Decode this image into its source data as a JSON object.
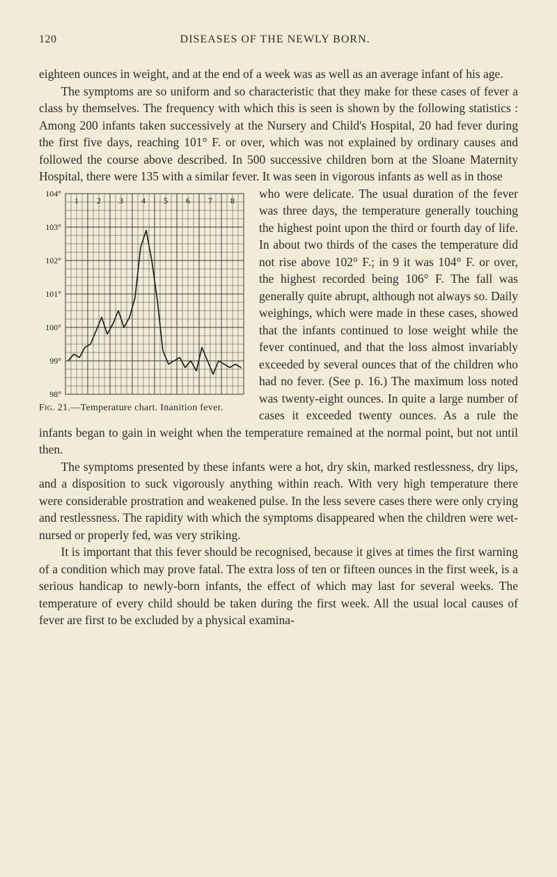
{
  "page_number": "120",
  "running_head": "DISEASES OF THE NEWLY BORN.",
  "para1": "eighteen ounces in weight, and at the end of a week was as well as an average infant of his age.",
  "para2": "The symptoms are so uniform and so characteristic that they make for these cases of fever a class by themselves. The frequency with which this is seen is shown by the following statistics : Among 200 infants taken successively at the Nursery and Child's Hospital, 20 had fever during the first five days, reaching 101° F. or over, which was not explained by ordinary causes and followed the course above described. In 500 successive children born at the Sloane Maternity Hospital, there were 135 with a similar fever. It was seen in vigorous infants as well as in those who were delicate. The usual duration of the fever was three days, the temperature generally touching the highest point upon the third or fourth day of life. In about two thirds of the cases the temperature did not rise above 102° F.; in 9 it was 104° F. or over, the highest recorded being 106° F. The fall was generally quite abrupt, although not always so. Daily weighings, which were made in these cases, showed that the infants continued to lose weight while the fever continued, and that the loss almost invariably exceeded by several ounces that of the children who had no fever. (See p. 16.) The maximum loss noted was twenty-eight ounces. In quite a large number of cases it exceeded twenty ounces. As a rule the infants began to gain in weight when the temperature remained at the normal point, but not not until then.",
  "para2_fixed_tail": "noted was twenty-eight ounces. In quite a large number of cases it exceeded twenty ounces. As a rule the infants began to gain in weight when the temperature remained at the normal point, but not until then.",
  "para2_wrap": "who were delicate. The usual duration of the fever was three days, the temperature generally touching the highest point upon the third or fourth day of life. In about two thirds of the cases the temperature did not rise above 102° F.; in 9 it was 104° F. or over, the highest recorded being 106° F. The fall was generally quite abrupt, although not always so. Daily weighings, which were made in these cases, showed that the infants continued to lose weight while the fever continued, and that the loss almost invariably exceeded by several ounces that of the children who had no fever. (See p. 16.) The maximum loss",
  "para2_head": "The symptoms are so uniform and so characteristic that they make for these cases of fever a class by themselves. The frequency with which this is seen is shown by the following statistics : Among 200 infants taken successively at the Nursery and Child's Hospital, 20 had fever during the first five days, reaching 101° F. or over, which was not explained by ordinary causes and followed the course above described. In 500 successive children born at the Sloane Maternity Hospital, there were 135 with a similar fever. It was seen in vigorous infants as well as in those",
  "para3": "The symptoms presented by these infants were a hot, dry skin, marked restlessness, dry lips, and a disposition to suck vigorously anything within reach. With very high temperature there were considerable prostration and weakened pulse. In the less severe cases there were only crying and restlessness. The rapidity with which the symptoms disappeared when the children were wet-nursed or properly fed, was very striking.",
  "para4": "It is important that this fever should be recognised, because it gives at times the first warning of a condition which may prove fatal. The extra loss of ten or fifteen ounces in the first week, is a serious handicap to newly-born infants, the effect of which may last for several weeks. The temperature of every child should be taken during the first week. All the usual local causes of fever are first to be excluded by a physical examina-",
  "figure": {
    "caption_prefix": "Fig. 21.",
    "caption_rest": "—Temperature chart. Inanition fever.",
    "type": "line",
    "x_days": [
      1,
      2,
      3,
      4,
      5,
      6,
      7,
      8
    ],
    "y_labels": [
      "104°",
      "103°",
      "102°",
      "101°",
      "100°",
      "99°",
      "98°"
    ],
    "y_range": [
      98,
      104
    ],
    "x_minor_per_day": 4,
    "series_values": [
      99.0,
      99.2,
      99.1,
      99.4,
      99.5,
      99.9,
      100.3,
      99.8,
      100.1,
      100.5,
      100.0,
      100.3,
      100.9,
      102.4,
      102.9,
      102.0,
      100.8,
      99.3,
      98.9,
      99.0,
      99.1,
      98.8,
      99.0,
      98.7,
      99.4,
      99.0,
      98.6,
      99.0,
      98.9,
      98.8,
      98.9,
      98.8
    ],
    "line_color": "#1a1a18",
    "line_width": 1.6,
    "grid_color": "#3a3a36",
    "grid_width_major": 1.0,
    "grid_width_minor": 0.5,
    "background": "#f0ecd8",
    "label_fontsize": 12
  }
}
